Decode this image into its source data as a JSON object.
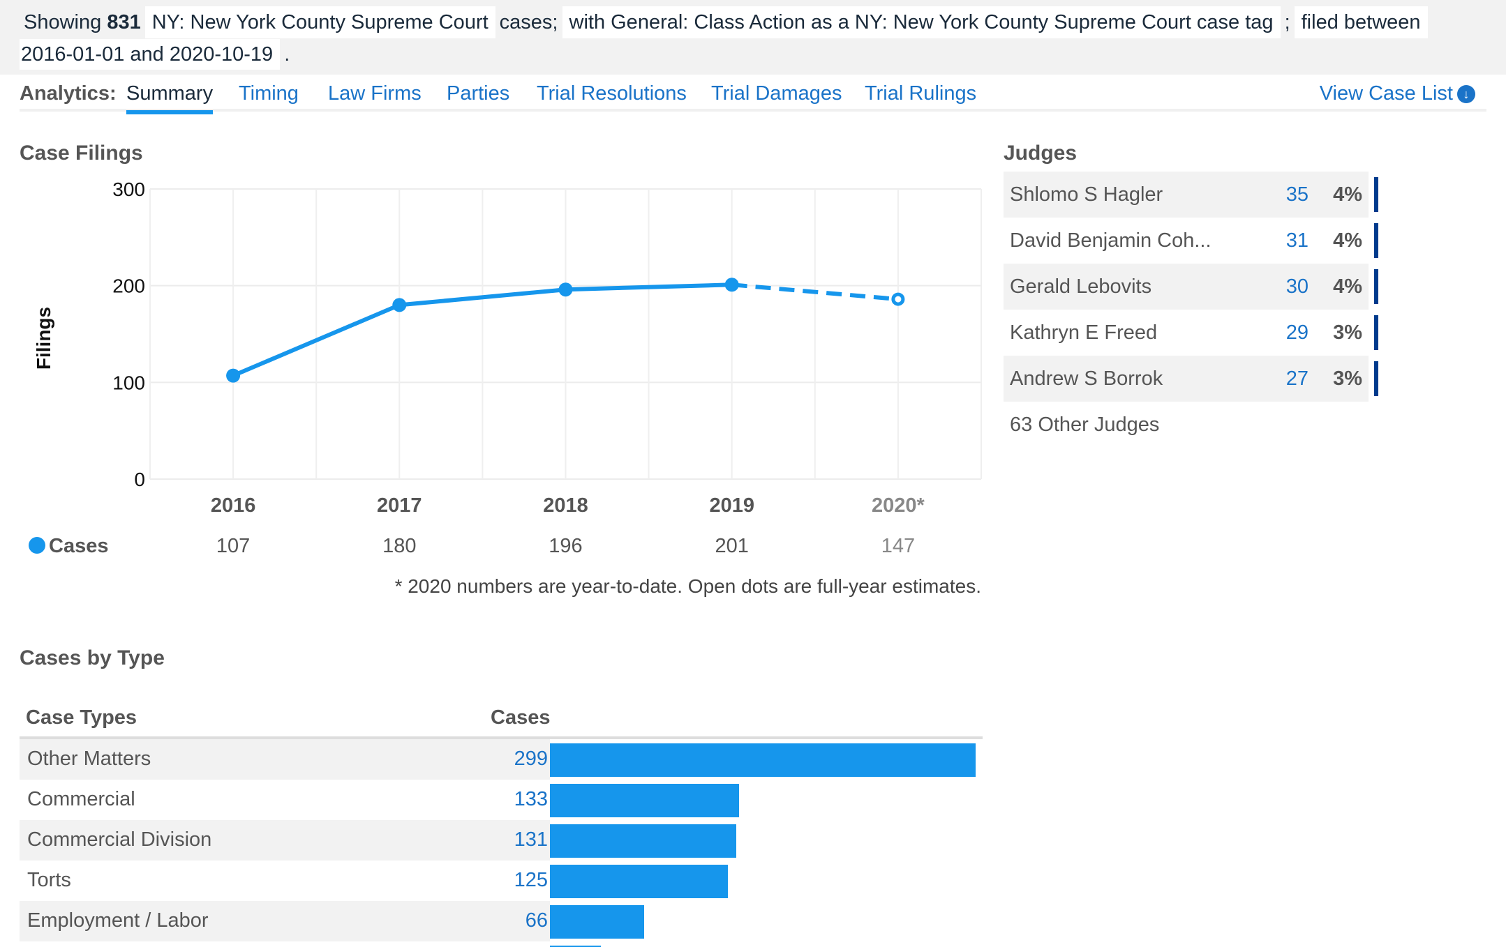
{
  "filter": {
    "showing_prefix": "Showing",
    "count": "831",
    "court_chip": "NY: New York County Supreme Court",
    "cases_text": "cases;",
    "tag_chip": "with General: Class Action as a NY: New York County Supreme Court case tag",
    "separator": ";",
    "filed_chip": "filed between",
    "date_chip": "2016-01-01 and 2020-10-19",
    "period": "."
  },
  "tabs": {
    "label": "Analytics:",
    "items": [
      {
        "label": "Summary",
        "active": true
      },
      {
        "label": "Timing"
      },
      {
        "label": "Law Firms"
      },
      {
        "label": "Parties"
      },
      {
        "label": "Trial Resolutions"
      },
      {
        "label": "Trial Damages"
      },
      {
        "label": "Trial Rulings"
      }
    ],
    "view_case_list": "View Case List",
    "view_case_list_icon": "arrow-down-circle-icon"
  },
  "case_filings": {
    "title": "Case Filings"
  },
  "chart_data": {
    "type": "line",
    "title": "Case Filings",
    "xlabel": "",
    "ylabel": "Filings",
    "ylim": [
      0,
      300
    ],
    "yticks": [
      0,
      100,
      200,
      300
    ],
    "grid": true,
    "categories": [
      "2016",
      "2017",
      "2018",
      "2019",
      "2020*"
    ],
    "series": [
      {
        "name": "Cases",
        "color": "#1696ec",
        "values": [
          107,
          180,
          196,
          201,
          147
        ],
        "plotted": [
          107,
          180,
          196,
          201,
          186
        ],
        "estimate_index": 4
      }
    ],
    "footnote": "* 2020 numbers are year-to-date. Open dots are full-year estimates.",
    "legend": "left-below"
  },
  "judges": {
    "title": "Judges",
    "rows": [
      {
        "name": "Shlomo S Hagler",
        "count": "35",
        "pct": "4%"
      },
      {
        "name": "David Benjamin Coh...",
        "count": "31",
        "pct": "4%"
      },
      {
        "name": "Gerald Lebovits",
        "count": "30",
        "pct": "4%"
      },
      {
        "name": "Kathryn E Freed",
        "count": "29",
        "pct": "3%"
      },
      {
        "name": "Andrew S Borrok",
        "count": "27",
        "pct": "3%"
      }
    ],
    "other": "63 Other Judges",
    "bar_color": "#003a8c"
  },
  "cases_by_type": {
    "title": "Cases by Type",
    "col_type": "Case Types",
    "col_cases": "Cases",
    "max": 299,
    "rows": [
      {
        "name": "Other Matters",
        "count": 299
      },
      {
        "name": "Commercial",
        "count": 133
      },
      {
        "name": "Commercial Division",
        "count": 131
      },
      {
        "name": "Torts",
        "count": 125
      },
      {
        "name": "Employment / Labor",
        "count": 66
      },
      {
        "name": "",
        "count": 36
      }
    ],
    "bar_color": "#1696ec"
  }
}
